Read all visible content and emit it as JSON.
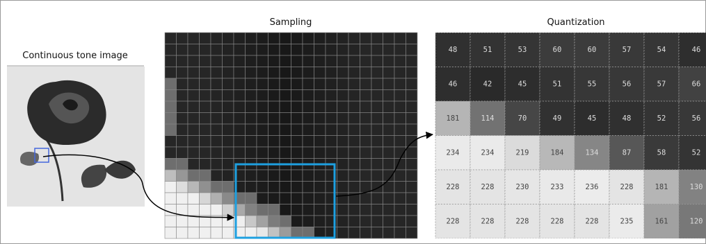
{
  "left": {
    "title": "Continuous tone image"
  },
  "sampling": {
    "title": "Sampling"
  },
  "quantization": {
    "title": "Quantization",
    "rows": [
      [
        48,
        51,
        53,
        60,
        60,
        57,
        54,
        46
      ],
      [
        46,
        42,
        45,
        51,
        55,
        56,
        57,
        66
      ],
      [
        181,
        114,
        70,
        49,
        45,
        48,
        52,
        56
      ],
      [
        234,
        234,
        219,
        184,
        134,
        87,
        58,
        52
      ],
      [
        228,
        228,
        230,
        233,
        236,
        228,
        181,
        130
      ],
      [
        228,
        228,
        228,
        228,
        228,
        235,
        161,
        120
      ]
    ]
  }
}
